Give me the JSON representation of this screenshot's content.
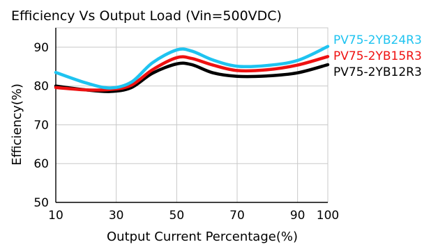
{
  "chart_data": {
    "type": "line",
    "title": "Efficiency Vs Output Load (Vin=500VDC)",
    "xlabel": "Output Current Percentage(%)",
    "ylabel": "Efficiency(%)",
    "xlim": [
      10,
      100
    ],
    "ylim": [
      50,
      95
    ],
    "x_ticks": [
      "10",
      "30",
      "50",
      "70",
      "90",
      "100"
    ],
    "y_ticks": [
      "50",
      "60",
      "70",
      "80",
      "90"
    ],
    "grid": true,
    "legend_position": "right",
    "series": [
      {
        "name": "PV75-2YB24R3",
        "color": "#1ec3f0",
        "points": [
          [
            10,
            83.5
          ],
          [
            20,
            80.8
          ],
          [
            28,
            79.5
          ],
          [
            35,
            81.0
          ],
          [
            42,
            86.0
          ],
          [
            50,
            89.3
          ],
          [
            55,
            89.0
          ],
          [
            62,
            86.7
          ],
          [
            70,
            85.1
          ],
          [
            80,
            85.3
          ],
          [
            90,
            86.6
          ],
          [
            100,
            90.2
          ]
        ]
      },
      {
        "name": "PV75-2YB15R3",
        "color": "#ee1111",
        "points": [
          [
            10,
            79.6
          ],
          [
            20,
            79.0
          ],
          [
            28,
            79.1
          ],
          [
            35,
            80.2
          ],
          [
            42,
            84.2
          ],
          [
            50,
            87.3
          ],
          [
            55,
            87.1
          ],
          [
            62,
            85.4
          ],
          [
            70,
            84.0
          ],
          [
            80,
            84.2
          ],
          [
            90,
            85.4
          ],
          [
            100,
            87.6
          ]
        ]
      },
      {
        "name": "PV75-2YB12R3",
        "color": "#000000",
        "points": [
          [
            10,
            80.0
          ],
          [
            20,
            79.0
          ],
          [
            28,
            78.6
          ],
          [
            35,
            79.6
          ],
          [
            42,
            83.3
          ],
          [
            50,
            85.7
          ],
          [
            55,
            85.5
          ],
          [
            62,
            83.4
          ],
          [
            70,
            82.5
          ],
          [
            80,
            82.6
          ],
          [
            90,
            83.4
          ],
          [
            100,
            85.5
          ]
        ]
      }
    ]
  }
}
